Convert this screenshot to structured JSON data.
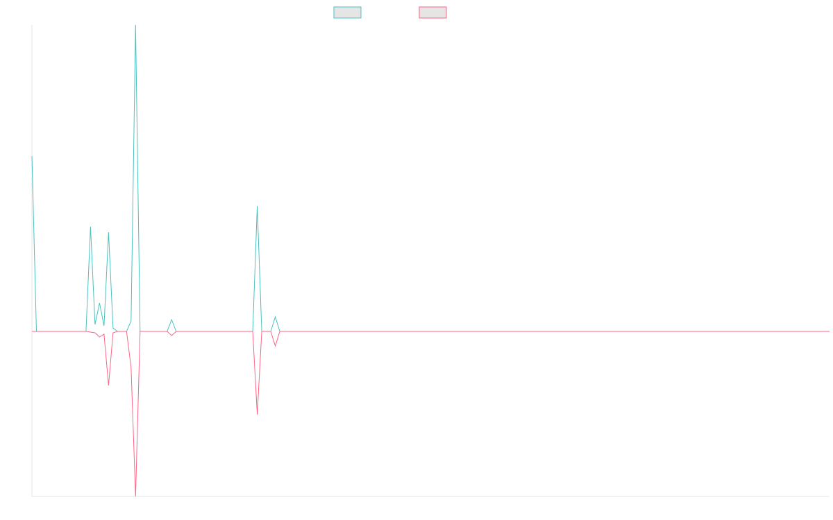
{
  "chart_data": {
    "type": "line",
    "x": [
      0,
      1,
      12,
      13,
      14,
      15,
      16,
      17,
      18,
      19,
      21,
      22,
      23,
      24,
      30,
      31,
      32,
      49,
      50,
      51,
      53,
      54,
      55,
      177
    ],
    "xlim": [
      0,
      177
    ],
    "ylim": [
      -2.38,
      4.42
    ],
    "series": [
      {
        "color": "#4bc0c0",
        "values": [
          2.53,
          0,
          0,
          1.51,
          0.1,
          0.41,
          0.08,
          1.43,
          0.05,
          0,
          0,
          0.15,
          4.42,
          0,
          0,
          0.17,
          0,
          0,
          1.81,
          0,
          0,
          0.21,
          0,
          0
        ]
      },
      {
        "color": "#ff6384",
        "values": [
          0,
          0,
          0,
          -0.01,
          -0.02,
          -0.08,
          -0.04,
          -0.78,
          -0.02,
          0,
          0,
          -0.52,
          -2.38,
          0,
          0,
          -0.06,
          0,
          0,
          -1.2,
          0,
          0,
          -0.21,
          0,
          0
        ]
      }
    ]
  }
}
